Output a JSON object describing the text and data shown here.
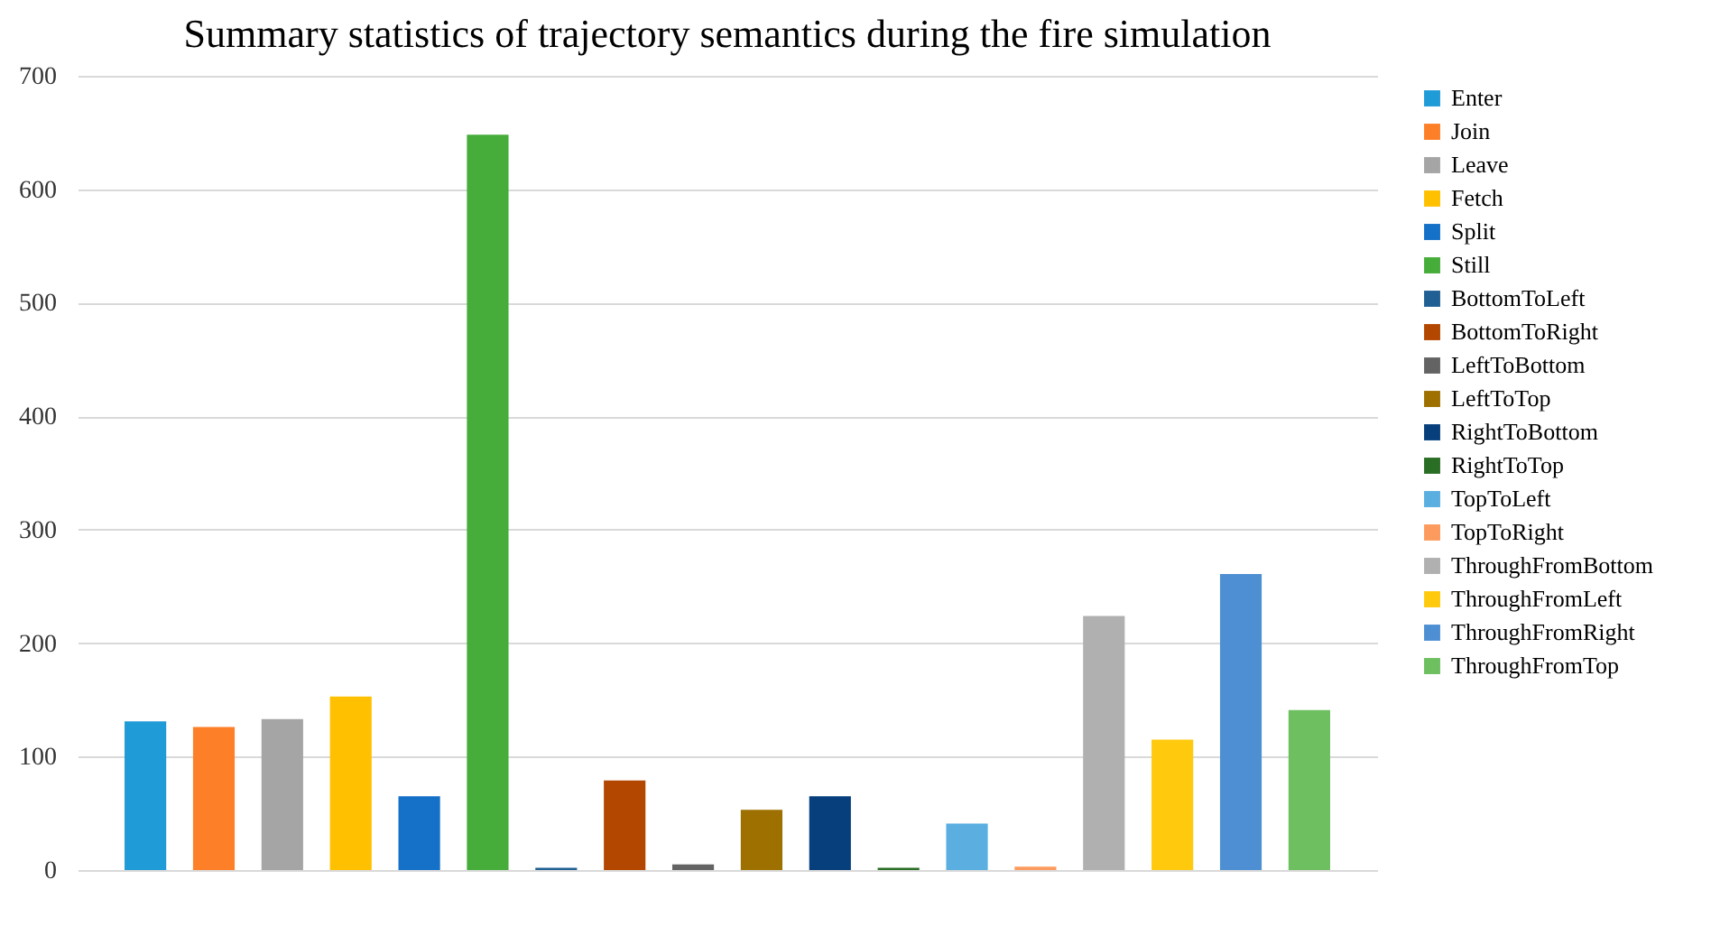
{
  "chart_data": {
    "type": "bar",
    "title": "Summary statistics of trajectory semantics during the fire simulation",
    "categories": [
      null
    ],
    "series": [
      {
        "name": "Enter",
        "color": "#1f9bd7",
        "values": [
          131
        ]
      },
      {
        "name": "Join",
        "color": "#fd7f28",
        "values": [
          126
        ]
      },
      {
        "name": "Leave",
        "color": "#a5a5a5",
        "values": [
          133
        ]
      },
      {
        "name": "Fetch",
        "color": "#ffc000",
        "values": [
          153
        ]
      },
      {
        "name": "Split",
        "color": "#1570c8",
        "values": [
          65
        ]
      },
      {
        "name": "Still",
        "color": "#46ad3a",
        "values": [
          648
        ]
      },
      {
        "name": "BottomToLeft",
        "color": "#1f5f93",
        "values": [
          2
        ]
      },
      {
        "name": "BottomToRight",
        "color": "#b34700",
        "values": [
          79
        ]
      },
      {
        "name": "LeftToBottom",
        "color": "#636363",
        "values": [
          5
        ]
      },
      {
        "name": "LeftToTop",
        "color": "#9e7000",
        "values": [
          53
        ]
      },
      {
        "name": "RightToBottom",
        "color": "#073f7d",
        "values": [
          65
        ]
      },
      {
        "name": "RightToTop",
        "color": "#2a6e26",
        "values": [
          2
        ]
      },
      {
        "name": "TopToLeft",
        "color": "#5aafe0",
        "values": [
          41
        ]
      },
      {
        "name": "TopToRight",
        "color": "#fd9a5e",
        "values": [
          3
        ]
      },
      {
        "name": "ThroughFromBottom",
        "color": "#b0b0b0",
        "values": [
          224
        ]
      },
      {
        "name": "ThroughFromLeft",
        "color": "#ffc90e",
        "values": [
          115
        ]
      },
      {
        "name": "ThroughFromRight",
        "color": "#4e8fd4",
        "values": [
          261
        ]
      },
      {
        "name": "ThroughFromTop",
        "color": "#6dbf5f",
        "values": [
          141
        ]
      }
    ],
    "ylim": [
      0,
      700
    ],
    "yticks": [
      0,
      100,
      200,
      300,
      400,
      500,
      600,
      700
    ],
    "grid": "y",
    "legend": "right"
  }
}
